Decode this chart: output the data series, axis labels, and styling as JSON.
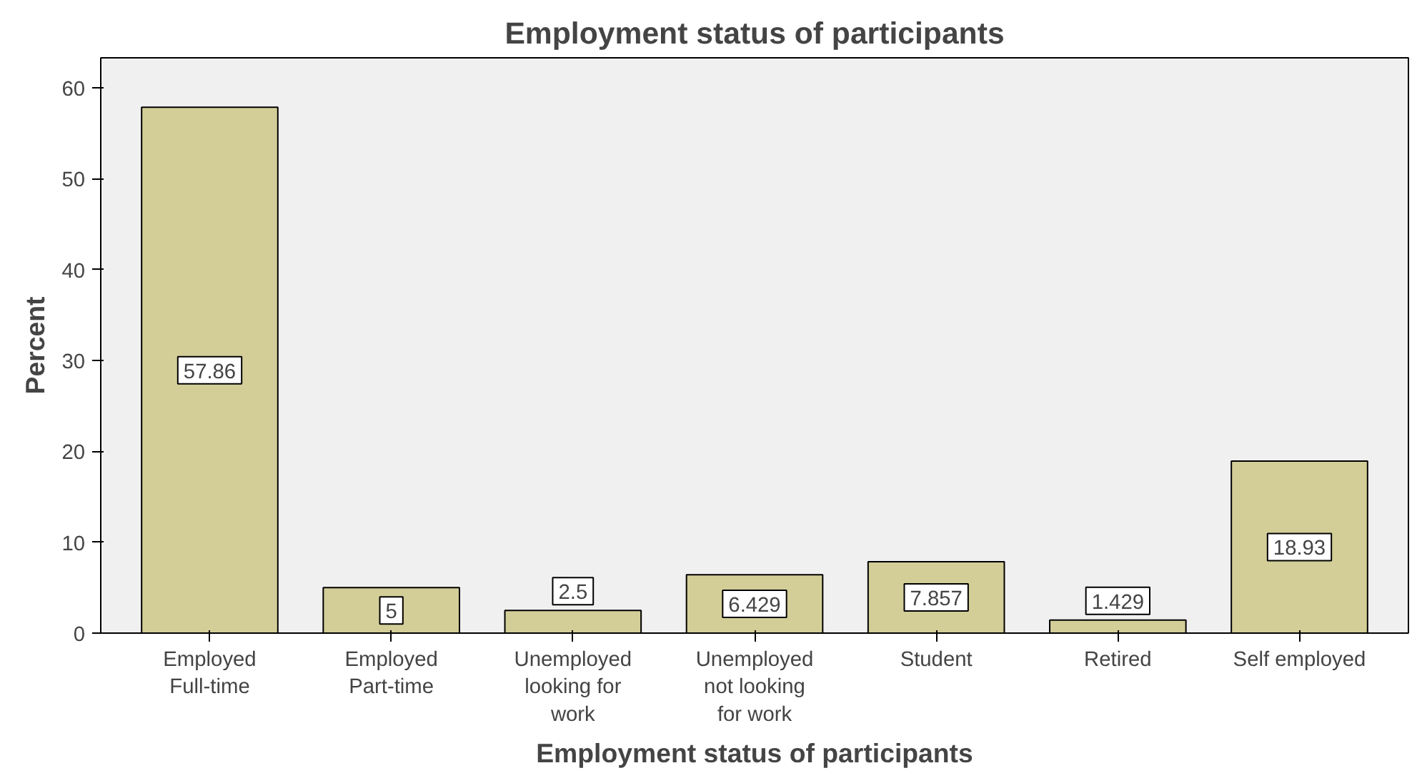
{
  "chart_data": {
    "type": "bar",
    "title": "Employment status of participants",
    "xlabel": "Employment status of participants",
    "ylabel": "Percent",
    "categories": [
      "Employed Full-time",
      "Employed Part-time",
      "Unemployed looking for work",
      "Unemployed not looking for work",
      "Student",
      "Retired",
      "Self employed"
    ],
    "values": [
      57.86,
      5,
      2.5,
      6.429,
      7.857,
      1.429,
      18.93
    ],
    "color": "#d3ce98",
    "ylim": [
      0,
      63.3
    ],
    "yticks": [
      0,
      10,
      20,
      30,
      40,
      50,
      60
    ],
    "data_labels": true,
    "grid": false
  }
}
